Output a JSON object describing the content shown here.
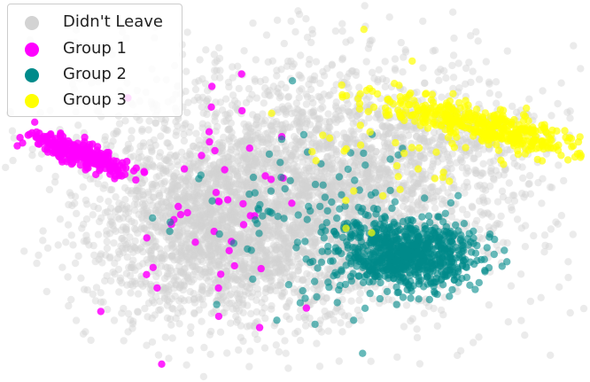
{
  "chart_data": {
    "type": "scatter",
    "title": "",
    "xlabel": "",
    "ylabel": "",
    "axes_visible": false,
    "grid": false,
    "legend_position": "top-left",
    "x_range": [
      -10,
      10
    ],
    "y_range": [
      -6.5,
      6.5
    ],
    "series": [
      {
        "name": "Didn't Leave",
        "color": "#d3d3d3",
        "opacity": 0.45,
        "clusters": [
          {
            "center": [
              -3.0,
              -1.4
            ],
            "spread": [
              2.2,
              1.6
            ],
            "count": 1500
          },
          {
            "center": [
              0.5,
              -1.2
            ],
            "spread": [
              2.8,
              1.9
            ],
            "count": 1100
          },
          {
            "center": [
              -0.5,
              1.2
            ],
            "spread": [
              3.6,
              1.9
            ],
            "count": 900
          },
          {
            "center": [
              3.5,
              1.0
            ],
            "spread": [
              2.8,
              1.7
            ],
            "count": 600
          },
          {
            "center": [
              0.0,
              0.0
            ],
            "spread": [
              5.5,
              3.2
            ],
            "count": 500
          },
          {
            "center": [
              6.2,
              1.8
            ],
            "spread": [
              1.6,
              0.6
            ],
            "count": 150
          }
        ]
      },
      {
        "name": "Group 1",
        "color": "#ff00ff",
        "opacity": 0.85,
        "clusters": [
          {
            "center": [
              -8.0,
              1.3
            ],
            "spread": [
              0.9,
              0.22
            ],
            "slope": -0.35,
            "count": 260
          },
          {
            "center": [
              -3.0,
              -0.6
            ],
            "spread": [
              1.6,
              2.2
            ],
            "count": 48
          }
        ]
      },
      {
        "name": "Group 2",
        "color": "#008b8b",
        "opacity": 0.6,
        "clusters": [
          {
            "center": [
              4.1,
              -2.3
            ],
            "spread": [
              1.25,
              0.6
            ],
            "count": 750
          },
          {
            "center": [
              0.8,
              -1.5
            ],
            "spread": [
              2.1,
              1.7
            ],
            "count": 140
          }
        ]
      },
      {
        "name": "Group 3",
        "color": "#ffff00",
        "opacity": 0.7,
        "clusters": [
          {
            "center": [
              7.0,
              2.3
            ],
            "spread": [
              2.1,
              0.3
            ],
            "slope": -0.22,
            "count": 420
          },
          {
            "center": [
              3.0,
              1.8
            ],
            "spread": [
              2.4,
              1.3
            ],
            "count": 50
          }
        ]
      }
    ]
  }
}
